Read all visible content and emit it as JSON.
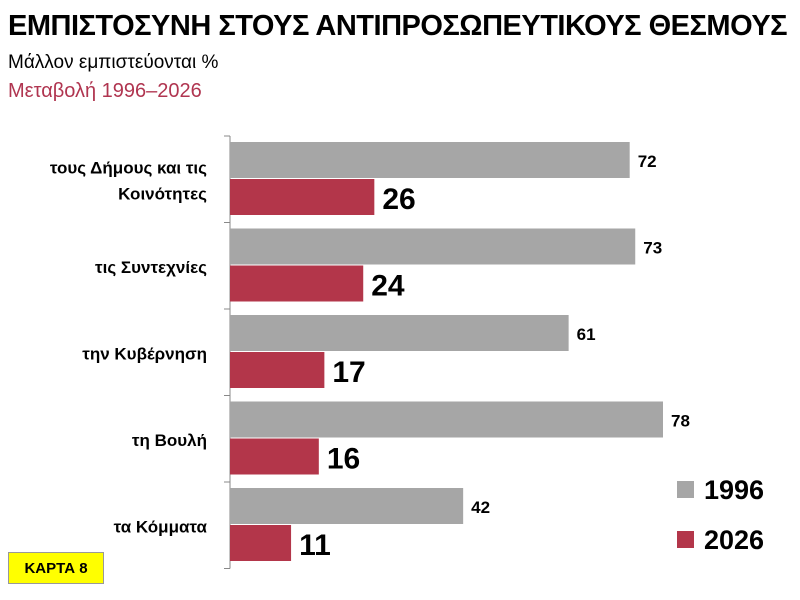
{
  "title": "ΕΜΠΙΣΤΟΣΥΝΗ ΣΤΟΥΣ ΑΝΤΙΠΡΟΣΩΠΕΥΤΙΚΟΥΣ ΘΕΣΜΟΥΣ",
  "subtitle": "Μάλλον εμπιστεύονται %",
  "subtitle2": "Μεταβολή 1996–2026",
  "badge": "ΚΑΡΤΑ 8",
  "chart_data": {
    "type": "bar",
    "orientation": "horizontal",
    "categories": [
      [
        "τους Δήμους και τις",
        "Κοινότητες"
      ],
      [
        "τις Συντεχνίες"
      ],
      [
        "την Κυβέρνηση"
      ],
      [
        "τη Βουλή"
      ],
      [
        "τα Κόμματα"
      ]
    ],
    "series": [
      {
        "name": "1996",
        "color": "#a6a6a6",
        "values": [
          72,
          73,
          61,
          78,
          42
        ]
      },
      {
        "name": "2026",
        "color": "#b3364a",
        "values": [
          26,
          24,
          17,
          16,
          11
        ]
      }
    ],
    "xlim": [
      0,
      78
    ],
    "grid": false,
    "legend": "bottom-right"
  }
}
